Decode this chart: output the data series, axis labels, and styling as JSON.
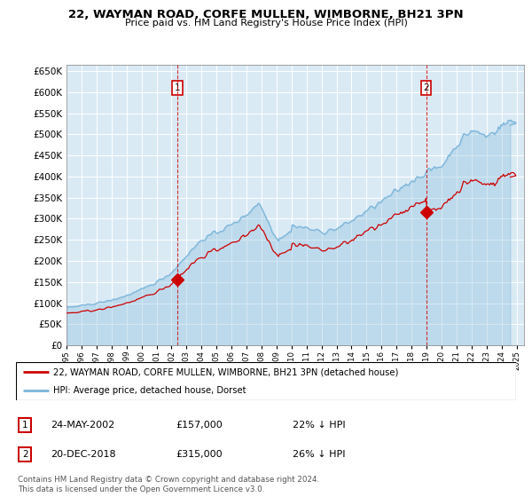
{
  "title": "22, WAYMAN ROAD, CORFE MULLEN, WIMBORNE, BH21 3PN",
  "subtitle": "Price paid vs. HM Land Registry's House Price Index (HPI)",
  "ytick_values": [
    0,
    50000,
    100000,
    150000,
    200000,
    250000,
    300000,
    350000,
    400000,
    450000,
    500000,
    550000,
    600000,
    650000
  ],
  "ylim": [
    0,
    665000
  ],
  "xlim_start": 1995.0,
  "xlim_end": 2025.5,
  "purchase1_year": 2002.38,
  "purchase1_price": 157000,
  "purchase2_year": 2018.97,
  "purchase2_price": 315000,
  "hpi_color": "#7ab5d9",
  "hpi_fill_color": "#daeaf5",
  "price_color": "#cc0000",
  "vline_color": "#cc0000",
  "bg_color": "#daeaf5",
  "legend_label_price": "22, WAYMAN ROAD, CORFE MULLEN, WIMBORNE, BH21 3PN (detached house)",
  "legend_label_hpi": "HPI: Average price, detached house, Dorset",
  "footnote": "Contains HM Land Registry data © Crown copyright and database right 2024.\nThis data is licensed under the Open Government Licence v3.0.",
  "table_rows": [
    {
      "num": "1",
      "date": "24-MAY-2002",
      "price": "£157,000",
      "pct": "22% ↓ HPI"
    },
    {
      "num": "2",
      "date": "20-DEC-2018",
      "price": "£315,000",
      "pct": "26% ↓ HPI"
    }
  ]
}
